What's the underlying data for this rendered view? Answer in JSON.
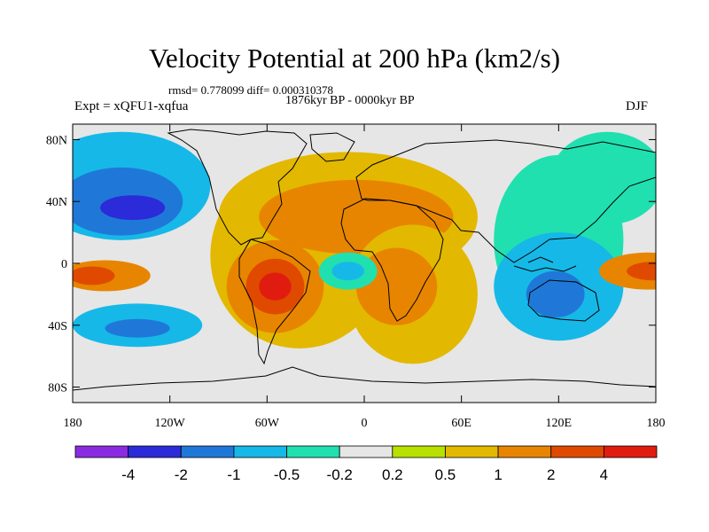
{
  "figure": {
    "title": "Velocity Potential at 200 hPa (km2/s)",
    "stats": "rmsd= 0.778099 diff= 0.000310378",
    "period": "1876kyr BP - 0000kyr BP",
    "experiment": "Expt = xQFU1-xqfua",
    "season": "DJF"
  },
  "axes": {
    "lat_ticks": [
      {
        "value": 80,
        "label": "80N"
      },
      {
        "value": 40,
        "label": "40N"
      },
      {
        "value": 0,
        "label": "0"
      },
      {
        "value": -40,
        "label": "40S"
      },
      {
        "value": -80,
        "label": "80S"
      }
    ],
    "lon_ticks": [
      {
        "value": -180,
        "label": "180"
      },
      {
        "value": -120,
        "label": "120W"
      },
      {
        "value": -60,
        "label": "60W"
      },
      {
        "value": 0,
        "label": "0"
      },
      {
        "value": 60,
        "label": "60E"
      },
      {
        "value": 120,
        "label": "120E"
      },
      {
        "value": 180,
        "label": "180"
      }
    ],
    "lon_range": [
      -180,
      180
    ],
    "lat_range": [
      -90,
      90
    ]
  },
  "colorbar": {
    "colors": [
      "#8a2be2",
      "#2b2bd9",
      "#1f78d8",
      "#16b8e8",
      "#20e0b0",
      "#e6e6e6",
      "#b8e000",
      "#e3b800",
      "#e88500",
      "#e04a00",
      "#e01c10"
    ],
    "boundary_labels": [
      "-4",
      "-2",
      "-1",
      "-0.5",
      "-0.2",
      "0.2",
      "0.5",
      "1",
      "2",
      "4"
    ]
  },
  "field_blobs": [
    {
      "lon": -150,
      "lat": 50,
      "rx": 55,
      "ry": 35,
      "level": 3
    },
    {
      "lon": -150,
      "lat": 40,
      "rx": 38,
      "ry": 22,
      "level": 2
    },
    {
      "lon": -143,
      "lat": 36,
      "rx": 20,
      "ry": 8,
      "level": 1
    },
    {
      "lon": -160,
      "lat": -8,
      "rx": 28,
      "ry": 10,
      "level": 8
    },
    {
      "lon": -168,
      "lat": -8,
      "rx": 14,
      "ry": 6,
      "level": 9
    },
    {
      "lon": -140,
      "lat": -40,
      "rx": 40,
      "ry": 14,
      "level": 3
    },
    {
      "lon": -140,
      "lat": -42,
      "rx": 20,
      "ry": 6,
      "level": 2
    },
    {
      "lon": -10,
      "lat": 30,
      "rx": 80,
      "ry": 42,
      "level": 7
    },
    {
      "lon": -40,
      "lat": 5,
      "rx": 55,
      "ry": 60,
      "level": 7
    },
    {
      "lon": -5,
      "lat": 30,
      "rx": 60,
      "ry": 24,
      "level": 8
    },
    {
      "lon": -55,
      "lat": -15,
      "rx": 30,
      "ry": 30,
      "level": 8
    },
    {
      "lon": -55,
      "lat": -15,
      "rx": 18,
      "ry": 18,
      "level": 9
    },
    {
      "lon": -55,
      "lat": -15,
      "rx": 10,
      "ry": 9,
      "level": 10
    },
    {
      "lon": 30,
      "lat": -20,
      "rx": 40,
      "ry": 45,
      "level": 7
    },
    {
      "lon": 20,
      "lat": -15,
      "rx": 25,
      "ry": 25,
      "level": 8
    },
    {
      "lon": -10,
      "lat": -5,
      "rx": 18,
      "ry": 12,
      "level": 4
    },
    {
      "lon": -10,
      "lat": -5,
      "rx": 10,
      "ry": 6,
      "level": 3
    },
    {
      "lon": 120,
      "lat": 15,
      "rx": 40,
      "ry": 55,
      "level": 4
    },
    {
      "lon": 120,
      "lat": -15,
      "rx": 40,
      "ry": 35,
      "level": 3
    },
    {
      "lon": 118,
      "lat": -20,
      "rx": 18,
      "ry": 15,
      "level": 2
    },
    {
      "lon": 150,
      "lat": 55,
      "rx": 35,
      "ry": 30,
      "level": 4
    },
    {
      "lon": 175,
      "lat": -5,
      "rx": 30,
      "ry": 12,
      "level": 8
    },
    {
      "lon": 178,
      "lat": -5,
      "rx": 16,
      "ry": 6,
      "level": 9
    }
  ]
}
